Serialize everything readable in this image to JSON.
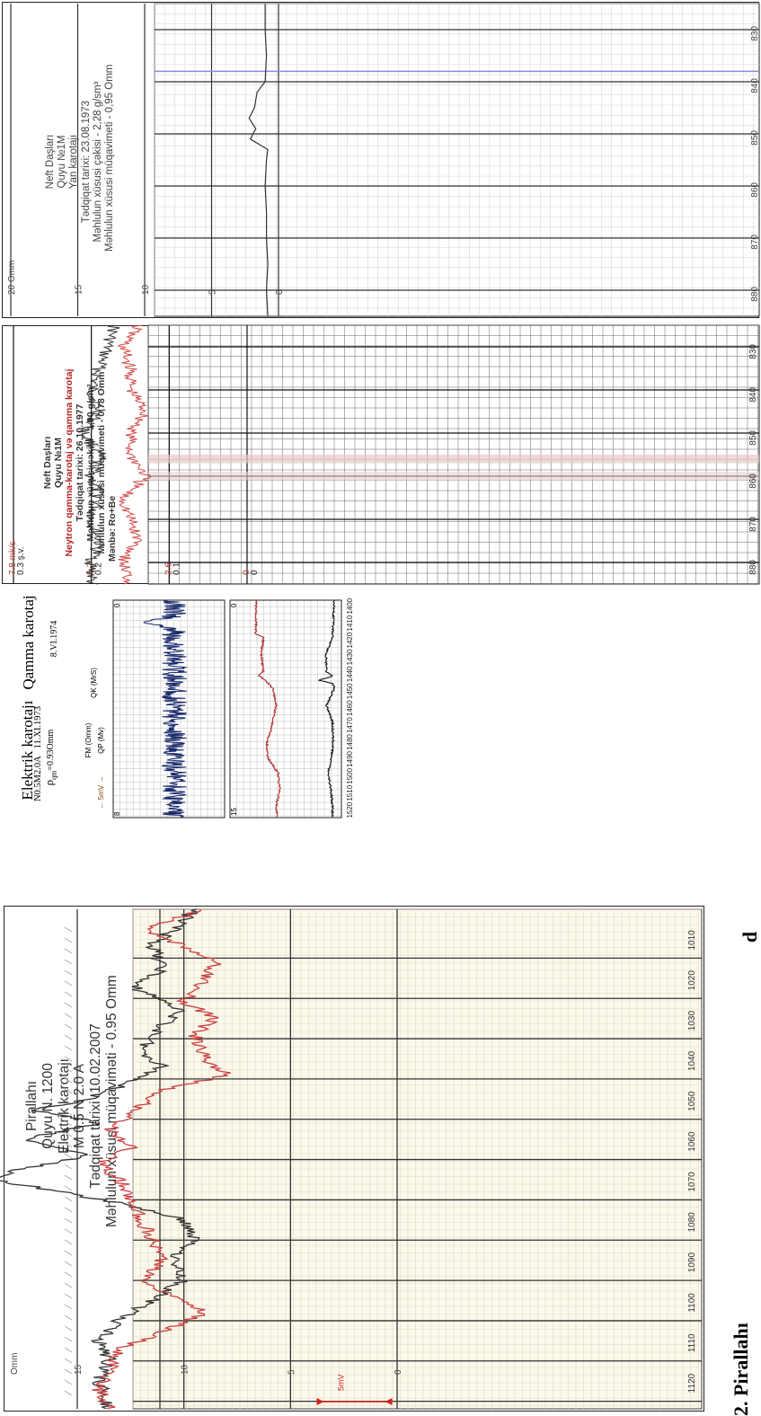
{
  "panel1": {
    "lines": [
      "Neft Daşları",
      "Quyu №1M",
      "Yan karotajı",
      "Tədqiqat tarixi: 23.08.1973",
      "Məhlulun xüsusi çəkisi - 2,28 g/sm³",
      "Məhlulun xüsusi müqavimeti - 0,95 Omm"
    ]
  },
  "panel2": {
    "lines": [
      "Neft Daşları",
      "Quyu №1M",
      "Neytron qamma-karotaj və qamma karotaj",
      "Tədqiqat tarixi: 26.10.1977",
      "Məhlulun xüsusi çəkisi - 1,90 g/sm³",
      "Məhlulun xüsusi müqavimeti - 0,78 Omm",
      "Mənbə: Ro+Be"
    ],
    "scale_red": [
      "0",
      "2.6",
      "5.2",
      "7.8 mk/s"
    ],
    "scale_black": [
      "0",
      "0.1",
      "0.2",
      "0.3 ş.v."
    ]
  },
  "panel3": {
    "qamma_title": "Qamma karotaj",
    "qamma_date": "8.VI.1974",
    "qamma_axis": "QK (MrS)",
    "qamma_scale": [
      "0",
      "8"
    ],
    "elektrik_title": "Elektrik karotajı",
    "elektrik_probe": "N0.5M2.0A",
    "elektrik_date": "11.XI.1973",
    "elektrik_rho": "ρ",
    "elektrik_rho_sub": "qm",
    "elektrik_rho_val": "=0.93Omm",
    "elektrik_axis1": "FM (Omm)",
    "elektrik_axis2": "QP (Mv)",
    "elektrik_sp": "← 5mV →",
    "elektrik_scale": [
      "0",
      "15"
    ]
  },
  "panel4": {
    "lines": [
      "Pirallahı",
      "Quyu N. 1200",
      "Elektrik karotajı",
      "M 0.5 N 2.0 A",
      "Tədqiqat tarixi :10.02.2007",
      "Məhlulun xüsusi müqaviməti - 0.95 Omm"
    ],
    "sp_label": "5mV",
    "scale": [
      "0",
      "5",
      "10",
      "15",
      "Omm"
    ]
  },
  "caption_text": "2. Pirallahı",
  "caption_tail": "d",
  "chart_data": [
    {
      "type": "line",
      "x_axis": "depth",
      "x": [
        830,
        840,
        850,
        860,
        870,
        880
      ],
      "xlim": [
        825,
        885
      ],
      "y_ticks": [
        "0",
        "5",
        "10",
        "15",
        "20 Omm"
      ],
      "ylim": [
        0,
        22
      ],
      "series": [
        {
          "x": [
            825,
            830,
            835,
            840,
            842,
            845,
            847,
            849,
            851,
            853,
            855,
            860,
            865,
            870,
            875,
            880,
            885
          ],
          "values": [
            1,
            1,
            0.9,
            1,
            1.6,
            1.8,
            2.2,
            1.7,
            2.1,
            0.8,
            0.9,
            1,
            0.9,
            0.9,
            0.8,
            0.9,
            0.8
          ]
        }
      ]
    },
    {
      "type": "line",
      "x_axis": "depth",
      "x": [
        830,
        840,
        850,
        860,
        870,
        880
      ],
      "xlim": [
        825,
        885
      ],
      "y_ticks_red": [
        "0",
        "2.6",
        "5.2",
        "7.8 mk/s"
      ],
      "y_ticks_black": [
        "0",
        "0.1",
        "0.2",
        "0.3 ş.v."
      ],
      "series": [
        {
          "color": "#333333",
          "x": [
            825,
            830,
            835,
            840,
            845,
            850,
            855,
            860,
            865,
            870,
            875,
            880,
            885
          ],
          "values": [
            0.17,
            0.18,
            0.19,
            0.2,
            0.19,
            0.21,
            0.19,
            0.2,
            0.19,
            0.2,
            0.19,
            0.2,
            0.2
          ]
        },
        {
          "color": "#d14a4a",
          "x": [
            825,
            830,
            835,
            840,
            845,
            850,
            855,
            860,
            865,
            870,
            875,
            880,
            885
          ],
          "values": [
            0.14,
            0.16,
            0.15,
            0.15,
            0.13,
            0.15,
            0.15,
            0.13,
            0.16,
            0.15,
            0.14,
            0.16,
            0.15
          ]
        }
      ]
    },
    {
      "type": "line",
      "x_axis": "depth",
      "x": [
        1400,
        1410,
        1420,
        1430,
        1440,
        1450,
        1460,
        1470,
        1480,
        1490,
        1500,
        1510,
        1520
      ],
      "xlim": [
        1398,
        1526
      ],
      "panels": [
        {
          "label": "QK (MrS)",
          "ylim": [
            0,
            8
          ],
          "series": [
            {
              "color": "#1a2a6c",
              "noise_base": 3.6,
              "amplitude": 0.9,
              "peak_at": 1411,
              "peak": 5.8
            }
          ]
        },
        {
          "label": "FM (Omm) / QP (Mv)",
          "ylim": [
            0,
            15
          ],
          "series": [
            {
              "color": "#b02a2a",
              "x": [
                1400,
                1418,
                1420,
                1430,
                1440,
                1442,
                1445,
                1450,
                1460,
                1475,
                1480,
                1490,
                1500,
                1510,
                1520,
                1526
              ],
              "values": [
                11.5,
                11.5,
                10.5,
                10.8,
                10.5,
                11.2,
                10.3,
                9.2,
                8.8,
                9.5,
                10,
                10,
                8.5,
                8.3,
                8.8,
                8.6
              ]
            },
            {
              "color": "#111111",
              "x": [
                1400,
                1410,
                1420,
                1430,
                1440,
                1443,
                1445,
                1447,
                1450,
                1460,
                1470,
                1480,
                1490,
                1500,
                1510,
                1520,
                1526
              ],
              "values": [
                1,
                1.1,
                1.2,
                2.1,
                2,
                1.2,
                3.2,
                1.1,
                1,
                2,
                1.2,
                1.1,
                1.3,
                1.8,
                1.4,
                1.2,
                1.2
              ]
            }
          ]
        }
      ]
    },
    {
      "type": "line",
      "x_axis": "depth",
      "x": [
        1010,
        1020,
        1030,
        1040,
        1050,
        1060,
        1070,
        1080,
        1090,
        1100,
        1110,
        1120
      ],
      "xlim": [
        1003,
        1127
      ],
      "y_ticks": [
        "0",
        "5",
        "10",
        "15",
        "Omm"
      ],
      "ylim": [
        0,
        19
      ],
      "series": [
        {
          "color": "#333333",
          "x": [
            1003,
            1008,
            1012,
            1018,
            1022,
            1028,
            1032,
            1038,
            1042,
            1046,
            1050,
            1053,
            1056,
            1060,
            1064,
            1068,
            1070,
            1073,
            1076,
            1080,
            1085,
            1090,
            1095,
            1100,
            1105,
            1110,
            1115,
            1120,
            1127
          ],
          "values": [
            9.5,
            10.5,
            11.5,
            11,
            12.5,
            10,
            11,
            12,
            11,
            12.5,
            14.5,
            17,
            14,
            17.5,
            14.5,
            18,
            19,
            16,
            13,
            10,
            9.5,
            10.5,
            10,
            11.5,
            13,
            14,
            13.5,
            14,
            13.5
          ]
        },
        {
          "color": "#c94040",
          "x": [
            1003,
            1008,
            1012,
            1016,
            1020,
            1026,
            1030,
            1034,
            1040,
            1044,
            1048,
            1052,
            1058,
            1062,
            1066,
            1070,
            1075,
            1080,
            1085,
            1090,
            1095,
            1100,
            1103,
            1108,
            1112,
            1118,
            1122,
            1127
          ],
          "values": [
            9,
            12,
            10,
            8.5,
            9,
            10,
            8.5,
            9.5,
            9,
            8,
            11,
            12,
            13.5,
            12.5,
            14,
            13,
            12.5,
            12,
            11.5,
            11,
            12,
            10,
            9,
            11,
            13,
            13.5,
            14,
            13.5
          ]
        }
      ]
    }
  ]
}
